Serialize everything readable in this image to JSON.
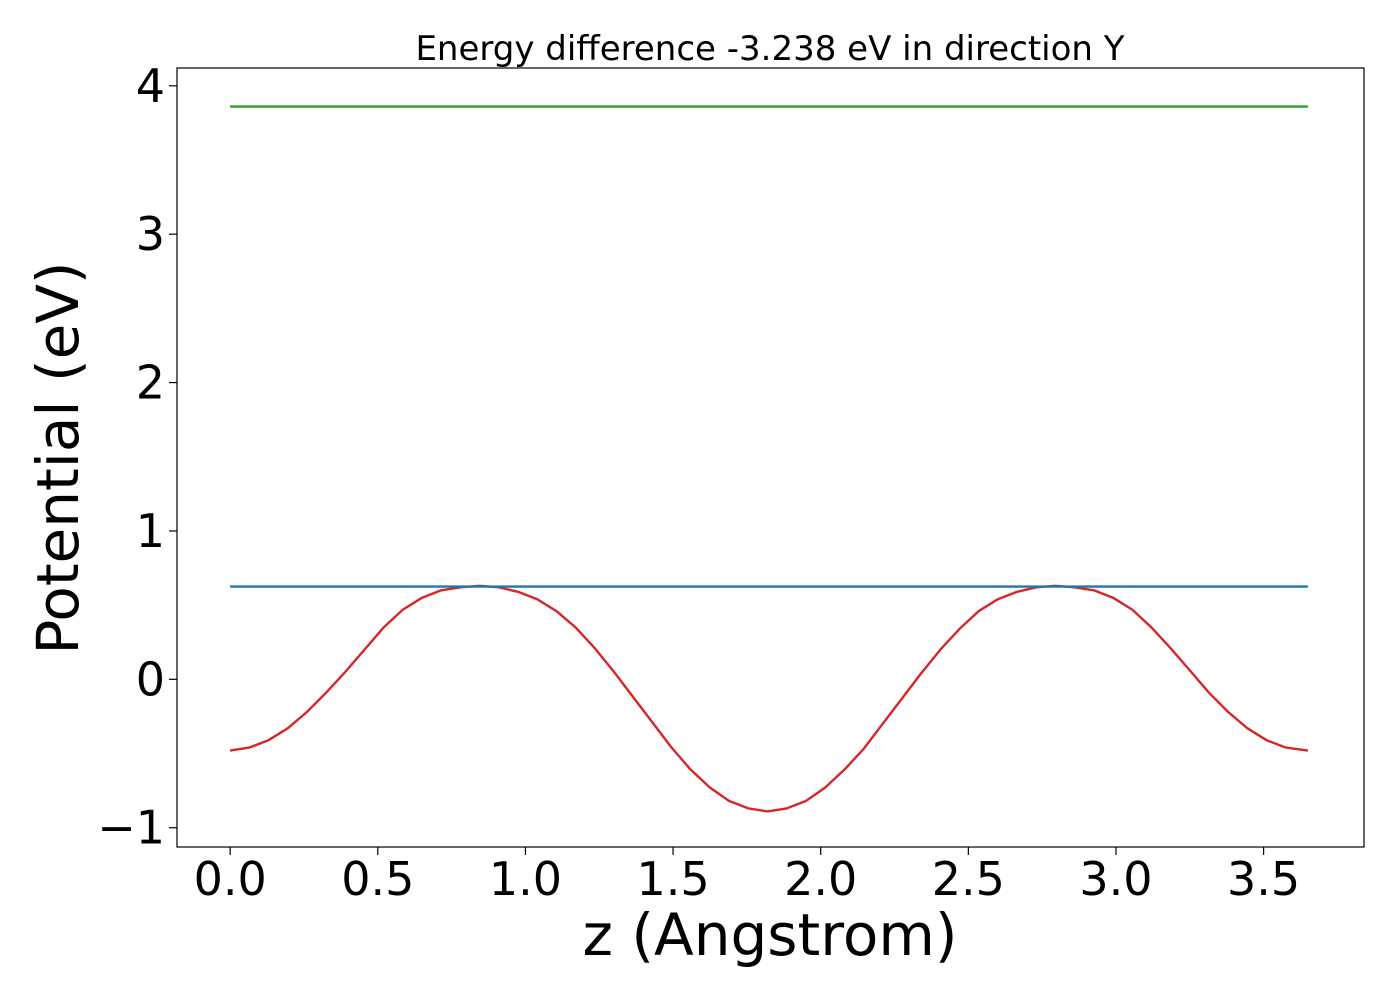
{
  "chart_data": {
    "type": "line",
    "title": "Energy difference -3.238 eV in direction Y",
    "xlabel": "z (Angstrom)",
    "ylabel": "Potential (eV)",
    "xlim": [
      -0.18,
      3.84
    ],
    "ylim": [
      -1.13,
      4.12
    ],
    "xticks": [
      0.0,
      0.5,
      1.0,
      1.5,
      2.0,
      2.5,
      3.0,
      3.5
    ],
    "xtick_labels": [
      "0.0",
      "0.5",
      "1.0",
      "1.5",
      "2.0",
      "2.5",
      "3.0",
      "3.5"
    ],
    "yticks": [
      -1,
      0,
      1,
      2,
      3,
      4
    ],
    "ytick_labels": [
      "−1",
      "0",
      "1",
      "2",
      "3",
      "4"
    ],
    "grid": false,
    "series": [
      {
        "color": "#d62728",
        "x": [
          0.0,
          0.065,
          0.13,
          0.195,
          0.26,
          0.325,
          0.39,
          0.455,
          0.52,
          0.585,
          0.65,
          0.715,
          0.78,
          0.845,
          0.91,
          0.975,
          1.04,
          1.105,
          1.17,
          1.235,
          1.3,
          1.365,
          1.43,
          1.495,
          1.56,
          1.625,
          1.69,
          1.755,
          1.82,
          1.885,
          1.95,
          2.015,
          2.08,
          2.145,
          2.21,
          2.275,
          2.34,
          2.405,
          2.47,
          2.535,
          2.6,
          2.665,
          2.73,
          2.795,
          2.86,
          2.925,
          2.99,
          3.055,
          3.12,
          3.185,
          3.25,
          3.315,
          3.38,
          3.445,
          3.51,
          3.575,
          3.65
        ],
        "y": [
          -0.48,
          -0.46,
          -0.41,
          -0.33,
          -0.22,
          -0.09,
          0.05,
          0.2,
          0.35,
          0.47,
          0.55,
          0.6,
          0.62,
          0.63,
          0.62,
          0.59,
          0.54,
          0.46,
          0.35,
          0.21,
          0.05,
          -0.12,
          -0.29,
          -0.46,
          -0.61,
          -0.73,
          -0.82,
          -0.87,
          -0.89,
          -0.87,
          -0.82,
          -0.73,
          -0.61,
          -0.47,
          -0.3,
          -0.13,
          0.04,
          0.2,
          0.34,
          0.46,
          0.54,
          0.59,
          0.62,
          0.63,
          0.62,
          0.6,
          0.55,
          0.47,
          0.35,
          0.21,
          0.06,
          -0.09,
          -0.22,
          -0.33,
          -0.41,
          -0.46,
          -0.48
        ]
      },
      {
        "color": "#1f77b4",
        "x": [
          0.0,
          3.65
        ],
        "y": [
          0.625,
          0.625
        ]
      },
      {
        "color": "#2ca02c",
        "x": [
          0.0,
          3.65
        ],
        "y": [
          3.86,
          3.86
        ]
      }
    ]
  }
}
